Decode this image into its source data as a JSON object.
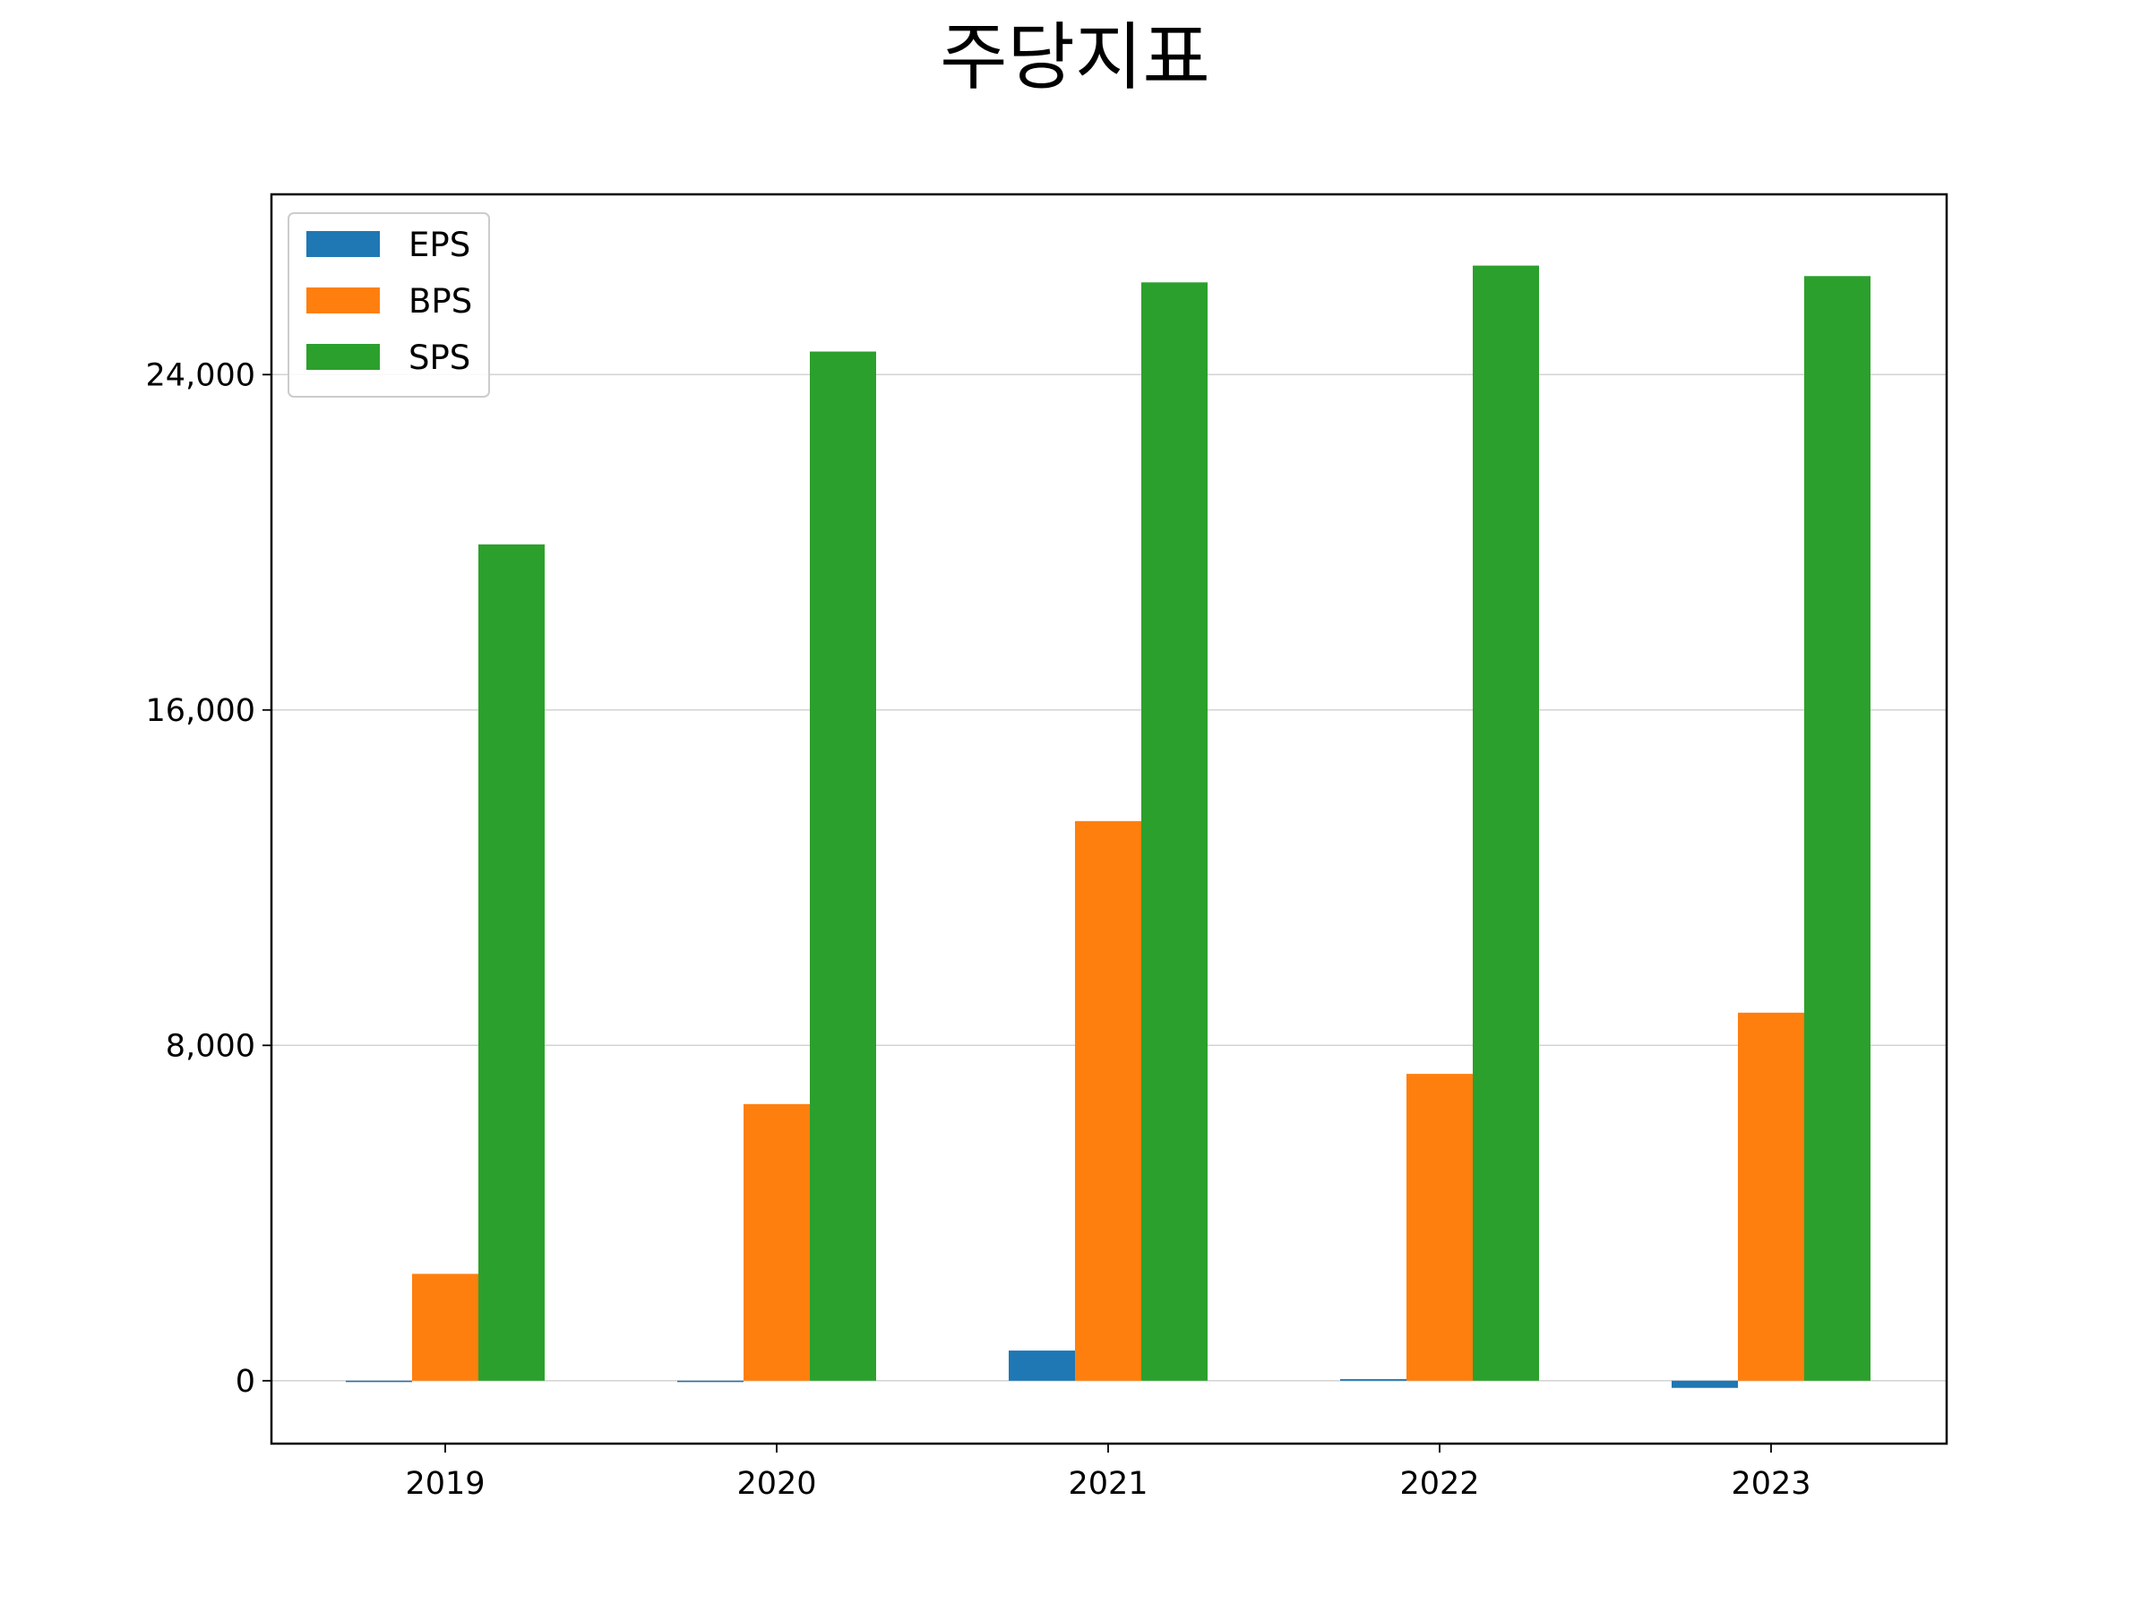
{
  "chart_data": {
    "type": "bar",
    "title": "주당지표",
    "xlabel": "",
    "ylabel": "",
    "categories": [
      "2019",
      "2020",
      "2021",
      "2022",
      "2023"
    ],
    "series": [
      {
        "name": "EPS",
        "color": "#1f77b4",
        "values": [
          0,
          0,
          720,
          40,
          -170
        ]
      },
      {
        "name": "BPS",
        "color": "#ff7f0e",
        "values": [
          2550,
          6600,
          13350,
          7320,
          8780
        ]
      },
      {
        "name": "SPS",
        "color": "#2ca02c",
        "values": [
          19950,
          24550,
          26200,
          26600,
          26350
        ]
      }
    ],
    "ylim": [
      -1500,
      28300
    ],
    "yticks": [
      0,
      8000,
      16000,
      24000
    ],
    "ytick_labels": [
      "0",
      "8,000",
      "16,000",
      "24,000"
    ],
    "grid": "y",
    "legend_position": "top-left"
  }
}
